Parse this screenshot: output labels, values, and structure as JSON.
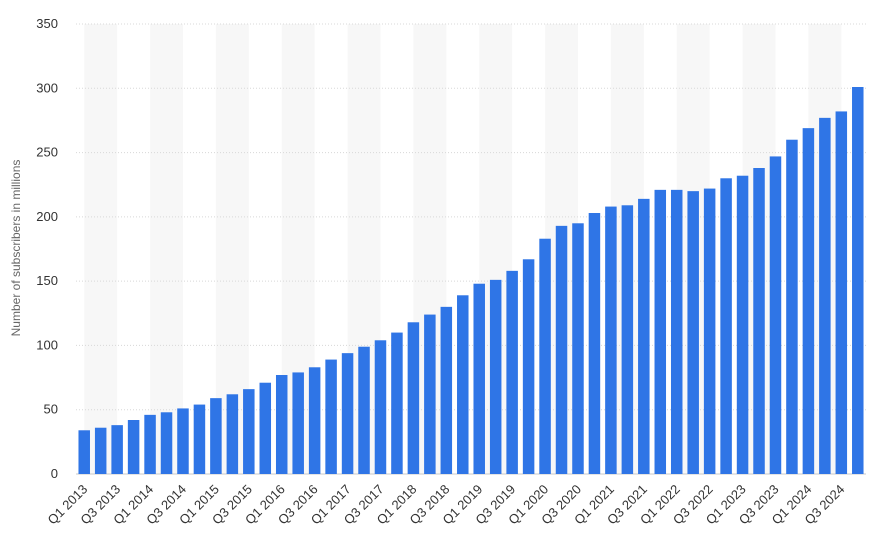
{
  "chart_data": {
    "type": "bar",
    "ylabel": "Number of subscribers in millions",
    "xlabel": "",
    "ylim": [
      0,
      350
    ],
    "yticks": [
      0,
      50,
      100,
      150,
      200,
      250,
      300,
      350
    ],
    "grid": "horizontal dotted",
    "bar_color": "#2f75e6",
    "band_color": "#f7f7f7",
    "categories": [
      "Q1 2013",
      "Q2 2013",
      "Q3 2013",
      "Q4 2013",
      "Q1 2014",
      "Q2 2014",
      "Q3 2014",
      "Q4 2014",
      "Q1 2015",
      "Q2 2015",
      "Q3 2015",
      "Q4 2015",
      "Q1 2016",
      "Q2 2016",
      "Q3 2016",
      "Q4 2016",
      "Q1 2017",
      "Q2 2017",
      "Q3 2017",
      "Q4 2017",
      "Q1 2018",
      "Q2 2018",
      "Q3 2018",
      "Q4 2018",
      "Q1 2019",
      "Q2 2019",
      "Q3 2019",
      "Q4 2019",
      "Q1 2020",
      "Q2 2020",
      "Q3 2020",
      "Q4 2020",
      "Q1 2021",
      "Q2 2021",
      "Q3 2021",
      "Q4 2021",
      "Q1 2022",
      "Q2 2022",
      "Q3 2022",
      "Q4 2022",
      "Q1 2023",
      "Q2 2023",
      "Q3 2023",
      "Q4 2023",
      "Q1 2024",
      "Q2 2024",
      "Q3 2024",
      "Q4 2024"
    ],
    "tick_labels_shown": [
      "Q1 2013",
      "Q3 2013",
      "Q1 2014",
      "Q3 2014",
      "Q1 2015",
      "Q3 2015",
      "Q1 2016",
      "Q3 2016",
      "Q1 2017",
      "Q3 2017",
      "Q1 2018",
      "Q3 2018",
      "Q1 2019",
      "Q3 2019",
      "Q1 2020",
      "Q3 2020",
      "Q1 2021",
      "Q3 2021",
      "Q1 2022",
      "Q3 2022",
      "Q1 2023",
      "Q3 2023",
      "Q1 2024",
      "Q3 2024"
    ],
    "values": [
      34,
      36,
      38,
      42,
      46,
      48,
      51,
      54,
      59,
      62,
      66,
      71,
      77,
      79,
      83,
      89,
      94,
      99,
      104,
      110,
      118,
      124,
      130,
      139,
      148,
      151,
      158,
      167,
      183,
      193,
      195,
      203,
      208,
      209,
      214,
      221,
      221,
      220,
      222,
      230,
      232,
      238,
      247,
      260,
      269,
      277,
      282,
      301
    ]
  }
}
